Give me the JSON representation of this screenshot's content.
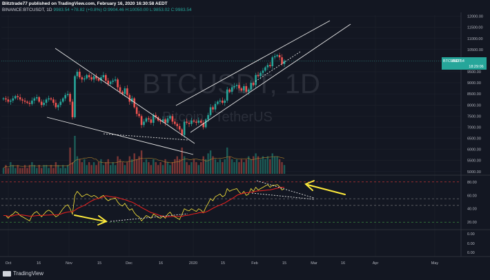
{
  "header": {
    "line1": "Blitztrade77 published on TradingView.com, February 16, 2020 16:30:58 AEDT",
    "symbol": "BINANCE:BTCUSDT, 1D",
    "last": "9983.54",
    "change": "+78.82 (+0.8%)",
    "ohlc": "O:9904.46 H:10050.00 L:9853.02 C:9983.54"
  },
  "watermark": {
    "main": "BTCUSDT, 1D",
    "sub": "Bitcoin / TetherUS"
  },
  "price_badge": {
    "label": "BTCUSDT",
    "price": "9983.54",
    "countdown": "18:29:06"
  },
  "footer": {
    "logo_text": "TradingView"
  },
  "colors": {
    "up": "#26a69a",
    "down": "#ef5350",
    "rsi": "#ffeb3b",
    "rsi_ma": "#e0201f",
    "bg": "#131722",
    "arrow": "#ffeb3b"
  },
  "chart_data": {
    "type": "candlestick",
    "x_ticks": [
      "Oct",
      "Nov",
      "Dec",
      "2020",
      "Feb",
      "Mar",
      "Apr",
      "May"
    ],
    "x_tick_minor": [
      "16",
      "15",
      "16",
      "15",
      "15",
      "16"
    ],
    "price_axis": {
      "ticks": [
        "12000.00",
        "11500.00",
        "11000.00",
        "10500.00",
        "10000.00",
        "9500.00",
        "9000.00",
        "8500.00",
        "8000.00",
        "7500.00",
        "7000.00",
        "6500.00",
        "6000.00",
        "5500.00",
        "5000.00"
      ],
      "range": [
        4900,
        12050
      ]
    },
    "rsi_axis": {
      "ticks": [
        "80.00",
        "60.00",
        "40.00",
        "20.00"
      ],
      "range": [
        12,
        88
      ],
      "levels": [
        80,
        55,
        45,
        20
      ]
    },
    "extra_axis": {
      "ticks": [
        "0.00",
        "0.00",
        "0.00"
      ]
    },
    "close_series": [
      8300,
      8250,
      8150,
      8200,
      8300,
      8400,
      8350,
      8250,
      8200,
      8150,
      8100,
      8050,
      8200,
      8300,
      8350,
      8150,
      8000,
      8100,
      8250,
      8300,
      8250,
      8100,
      7900,
      8000,
      8150,
      8300,
      8450,
      8500,
      8150,
      7450,
      9300,
      9500,
      9250,
      9150,
      9200,
      9350,
      9250,
      9150,
      9300,
      9200,
      9100,
      9250,
      9350,
      9100,
      8950,
      9050,
      9100,
      9150,
      8800,
      8600,
      8500,
      8750,
      8450,
      8150,
      8300,
      7900,
      7600,
      7500,
      7100,
      7250,
      7400,
      7350,
      7200,
      7550,
      7450,
      7300,
      7250,
      7350,
      7200,
      7400,
      7500,
      7250,
      7150,
      7050,
      6900,
      6650,
      7250,
      7200,
      7150,
      7300,
      7250,
      7200,
      7300,
      7200,
      7000,
      7350,
      7550,
      7900,
      7800,
      8050,
      8150,
      8200,
      8100,
      8200,
      8700,
      8600,
      8800,
      8850,
      8900,
      8750,
      8650,
      8850,
      8600,
      8700,
      9000,
      8900,
      9350,
      9300,
      9450,
      9550,
      9700,
      9800,
      9750,
      10150,
      10200,
      10250,
      10150,
      9850,
      9983
    ],
    "volume_series": [
      2,
      3,
      2,
      4,
      3,
      2,
      3,
      2,
      2,
      3,
      2,
      3,
      4,
      3,
      2,
      3,
      2,
      3,
      3,
      2,
      3,
      2,
      4,
      3,
      2,
      3,
      2,
      3,
      9,
      4,
      13,
      6,
      5,
      4,
      5,
      3,
      4,
      3,
      4,
      3,
      4,
      5,
      3,
      4,
      5,
      3,
      4,
      3,
      6,
      5,
      4,
      3,
      4,
      6,
      5,
      7,
      5,
      6,
      8,
      4,
      5,
      4,
      3,
      5,
      4,
      3,
      4,
      3,
      5,
      4,
      3,
      4,
      5,
      6,
      5,
      9,
      6,
      4,
      3,
      4,
      5,
      4,
      3,
      4,
      6,
      5,
      7,
      8,
      6,
      5,
      4,
      5,
      4,
      5,
      9,
      6,
      5,
      4,
      5,
      4,
      5,
      4,
      5,
      6,
      5,
      6,
      7,
      6,
      5,
      6,
      5,
      6,
      5,
      7,
      6,
      6,
      5,
      4,
      3
    ],
    "rsi_series": [
      30,
      30,
      26,
      30,
      32,
      36,
      34,
      30,
      28,
      26,
      24,
      22,
      30,
      34,
      36,
      32,
      28,
      32,
      36,
      38,
      36,
      32,
      28,
      30,
      35,
      40,
      44,
      46,
      40,
      32,
      60,
      66,
      62,
      58,
      60,
      62,
      60,
      58,
      60,
      58,
      55,
      58,
      60,
      55,
      52,
      54,
      55,
      56,
      50,
      46,
      44,
      48,
      42,
      38,
      40,
      34,
      30,
      28,
      22,
      26,
      30,
      28,
      26,
      32,
      30,
      27,
      26,
      29,
      26,
      32,
      35,
      30,
      28,
      26,
      24,
      32,
      40,
      38,
      37,
      40,
      38,
      36,
      40,
      38,
      34,
      42,
      48,
      55,
      52,
      58,
      60,
      62,
      58,
      60,
      70,
      66,
      68,
      69,
      70,
      65,
      62,
      66,
      60,
      62,
      70,
      66,
      72,
      68,
      70,
      72,
      74,
      76,
      72,
      75,
      75,
      76,
      73,
      68,
      70
    ],
    "annotations": [
      "descending wedge trendlines",
      "ascending channel trendlines",
      "rsi divergence arrows"
    ]
  }
}
